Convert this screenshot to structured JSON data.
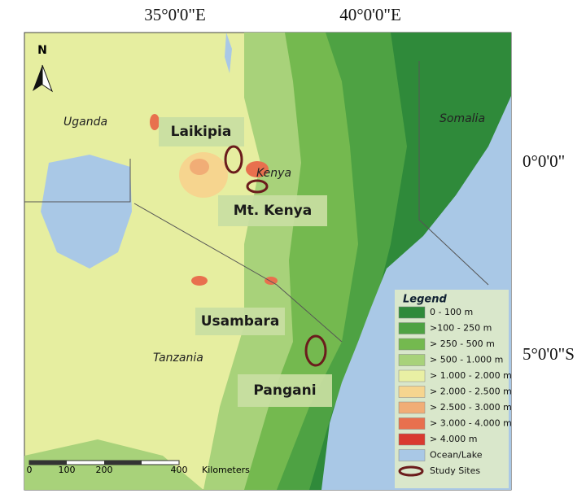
{
  "top_labels": [
    "35°0'0\"E",
    "40°0'0\"E"
  ],
  "side_labels": [
    "0°0'0\"",
    "5°0'0\"S"
  ],
  "north": "N",
  "countries": [
    "Uganda",
    "Somalia",
    "Kenya",
    "Tanzania"
  ],
  "study_sites": [
    "Laikipia",
    "Mt. Kenya",
    "Usambara",
    "Pangani"
  ],
  "legend": {
    "title": "Legend",
    "items": [
      {
        "label": "0 - 100 m",
        "color": "#2f8a3a"
      },
      {
        "label": ">100 - 250 m",
        "color": "#4ea243"
      },
      {
        "label": "> 250 - 500 m",
        "color": "#74b94f"
      },
      {
        "label": "> 500 - 1.000 m",
        "color": "#a8d27a"
      },
      {
        "label": "> 1.000 - 2.000 m",
        "color": "#e9f0a4"
      },
      {
        "label": "> 2.000 - 2.500 m",
        "color": "#f6d58f"
      },
      {
        "label": "> 2.500 - 3.000 m",
        "color": "#f1ad76"
      },
      {
        "label": "> 3.000 - 4.000 m",
        "color": "#e8704e"
      },
      {
        "label": "> 4.000 m",
        "color": "#d93a30"
      },
      {
        "label": "Ocean/Lake",
        "color": "#a9c8e6"
      },
      {
        "label": "Study Sites",
        "color": "#6b1c1c"
      }
    ]
  },
  "scale": {
    "ticks": [
      "0",
      "100",
      "200",
      "400"
    ],
    "unit": "Kilometers"
  }
}
